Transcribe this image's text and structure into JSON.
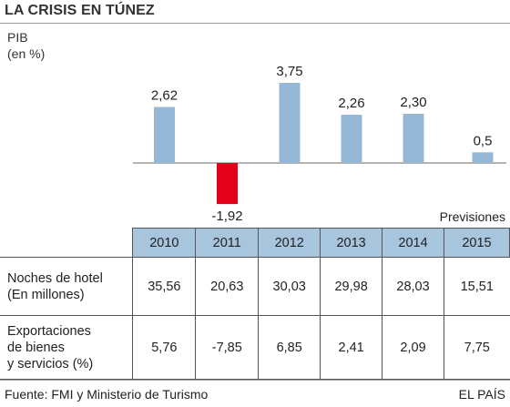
{
  "title": "LA CRISIS EN TÚNEZ",
  "ylabel_line1": "PIB",
  "ylabel_line2": "(en %)",
  "previsiones": "Previsiones",
  "source": "Fuente: FMI y Ministerio de Turismo",
  "brand": "EL PAÍS",
  "colors": {
    "positive": "#94b8d6",
    "negative": "#e2001a",
    "header": "#a8c5de"
  },
  "chart_data": {
    "type": "bar",
    "categories": [
      "2010",
      "2011",
      "2012",
      "2013",
      "2014",
      "2015"
    ],
    "values": [
      2.62,
      -1.92,
      3.75,
      2.26,
      2.3,
      0.5
    ],
    "value_labels": [
      "2,62",
      "-1,92",
      "3,75",
      "2,26",
      "2,30",
      "0,5"
    ],
    "ylabel": "PIB (en %)",
    "grid": false
  },
  "table": {
    "years": [
      "2010",
      "2011",
      "2012",
      "2013",
      "2014",
      "2015"
    ],
    "rows": [
      {
        "label_lines": [
          "Noches de hotel",
          "(En millones)"
        ],
        "values": [
          "35,56",
          "20,63",
          "30,03",
          "29,98",
          "28,03",
          "15,51"
        ]
      },
      {
        "label_lines": [
          "Exportaciones",
          "de bienes",
          "y servicios (%)"
        ],
        "values": [
          "5,76",
          "-7,85",
          "6,85",
          "2,41",
          "2,09",
          "7,75"
        ]
      }
    ]
  }
}
